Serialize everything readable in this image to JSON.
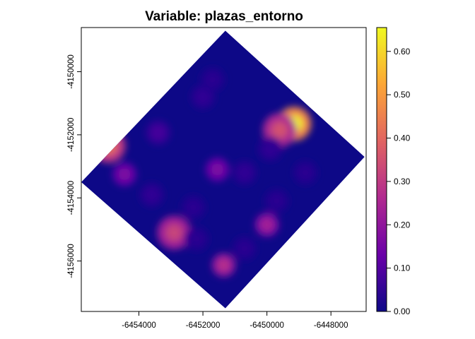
{
  "chart_data": {
    "type": "heatmap",
    "title": "Variable: plazas_entorno",
    "xlabel": "",
    "ylabel": "",
    "x_ticks": [
      {
        "value": -6454000,
        "label": "-6454000"
      },
      {
        "value": -6452000,
        "label": "-6452000"
      },
      {
        "value": -6450000,
        "label": "-6450000"
      },
      {
        "value": -6448000,
        "label": "-6448000"
      }
    ],
    "y_ticks": [
      {
        "value": -4150000,
        "label": "-4150000"
      },
      {
        "value": -4152000,
        "label": "-4152000"
      },
      {
        "value": -4154000,
        "label": "-4154000"
      },
      {
        "value": -4156000,
        "label": "-4156000"
      }
    ],
    "xlim": [
      -6455800,
      -6446900
    ],
    "ylim": [
      -4157600,
      -4148600
    ],
    "domain_polygon": [
      [
        -6451300,
        -4148700
      ],
      [
        -6446950,
        -4152700
      ],
      [
        -6451300,
        -4157500
      ],
      [
        -6455800,
        -4153500
      ]
    ],
    "hotspots": [
      {
        "x": -6449150,
        "y": -4151650,
        "value": 0.65
      },
      {
        "x": -6449600,
        "y": -4151850,
        "value": 0.35
      },
      {
        "x": -6454950,
        "y": -4152350,
        "value": 0.42
      },
      {
        "x": -6452900,
        "y": -4155100,
        "value": 0.32
      },
      {
        "x": -6451350,
        "y": -4156130,
        "value": 0.28
      },
      {
        "x": -6450000,
        "y": -4154850,
        "value": 0.24
      },
      {
        "x": -6454450,
        "y": -4153250,
        "value": 0.17
      },
      {
        "x": -6451550,
        "y": -4153100,
        "value": 0.17
      },
      {
        "x": -6453400,
        "y": -4151930,
        "value": 0.08
      },
      {
        "x": -6452000,
        "y": -4150800,
        "value": 0.05
      },
      {
        "x": -6452900,
        "y": -4149500,
        "value": 0.04
      },
      {
        "x": -6451700,
        "y": -4150250,
        "value": 0.04
      },
      {
        "x": -6449900,
        "y": -4152450,
        "value": 0.05
      },
      {
        "x": -6450700,
        "y": -4153200,
        "value": 0.05
      },
      {
        "x": -6448800,
        "y": -4153200,
        "value": 0.04
      },
      {
        "x": -6453600,
        "y": -4153900,
        "value": 0.05
      },
      {
        "x": -6452300,
        "y": -4154300,
        "value": 0.04
      },
      {
        "x": -6449700,
        "y": -4154100,
        "value": 0.04
      },
      {
        "x": -6452200,
        "y": -4155300,
        "value": 0.04
      },
      {
        "x": -6450700,
        "y": -4155600,
        "value": 0.04
      },
      {
        "x": -6448400,
        "y": -4150600,
        "value": 0.04
      }
    ],
    "colorbar": {
      "range": [
        0,
        0.655
      ],
      "ticks": [
        {
          "value": 0.0,
          "label": "0.00"
        },
        {
          "value": 0.1,
          "label": "0.10"
        },
        {
          "value": 0.2,
          "label": "0.20"
        },
        {
          "value": 0.3,
          "label": "0.30"
        },
        {
          "value": 0.4,
          "label": "0.40"
        },
        {
          "value": 0.5,
          "label": "0.50"
        },
        {
          "value": 0.6,
          "label": "0.60"
        }
      ],
      "colors": [
        "#0d0887",
        "#6a00a8",
        "#b12a90",
        "#e16462",
        "#fca636",
        "#f0f921"
      ]
    },
    "legend_position": "right",
    "grid": false
  }
}
